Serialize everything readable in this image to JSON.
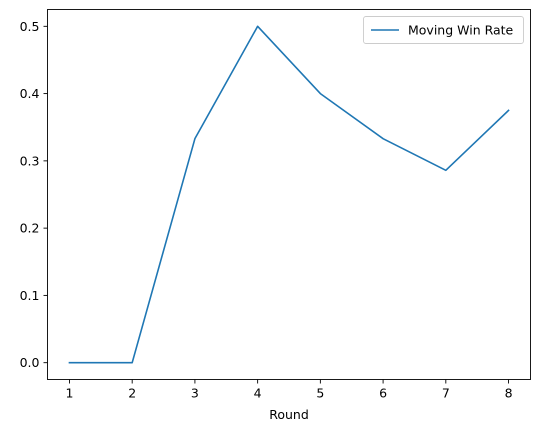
{
  "chart_data": {
    "type": "line",
    "title": "",
    "xlabel": "Round",
    "ylabel": "",
    "x": [
      1,
      2,
      3,
      4,
      5,
      6,
      7,
      8
    ],
    "xticks": [
      "1",
      "2",
      "3",
      "4",
      "5",
      "6",
      "7",
      "8"
    ],
    "yticks": [
      "0.0",
      "0.1",
      "0.2",
      "0.3",
      "0.4",
      "0.5"
    ],
    "xlim": [
      0.65,
      8.35
    ],
    "ylim": [
      -0.025,
      0.525
    ],
    "grid": false,
    "legend_position": "top-right",
    "series": [
      {
        "name": "Moving Win Rate",
        "color": "#1f77b4",
        "values": [
          0.0,
          0.0,
          0.333,
          0.5,
          0.4,
          0.333,
          0.286,
          0.375
        ]
      }
    ]
  }
}
